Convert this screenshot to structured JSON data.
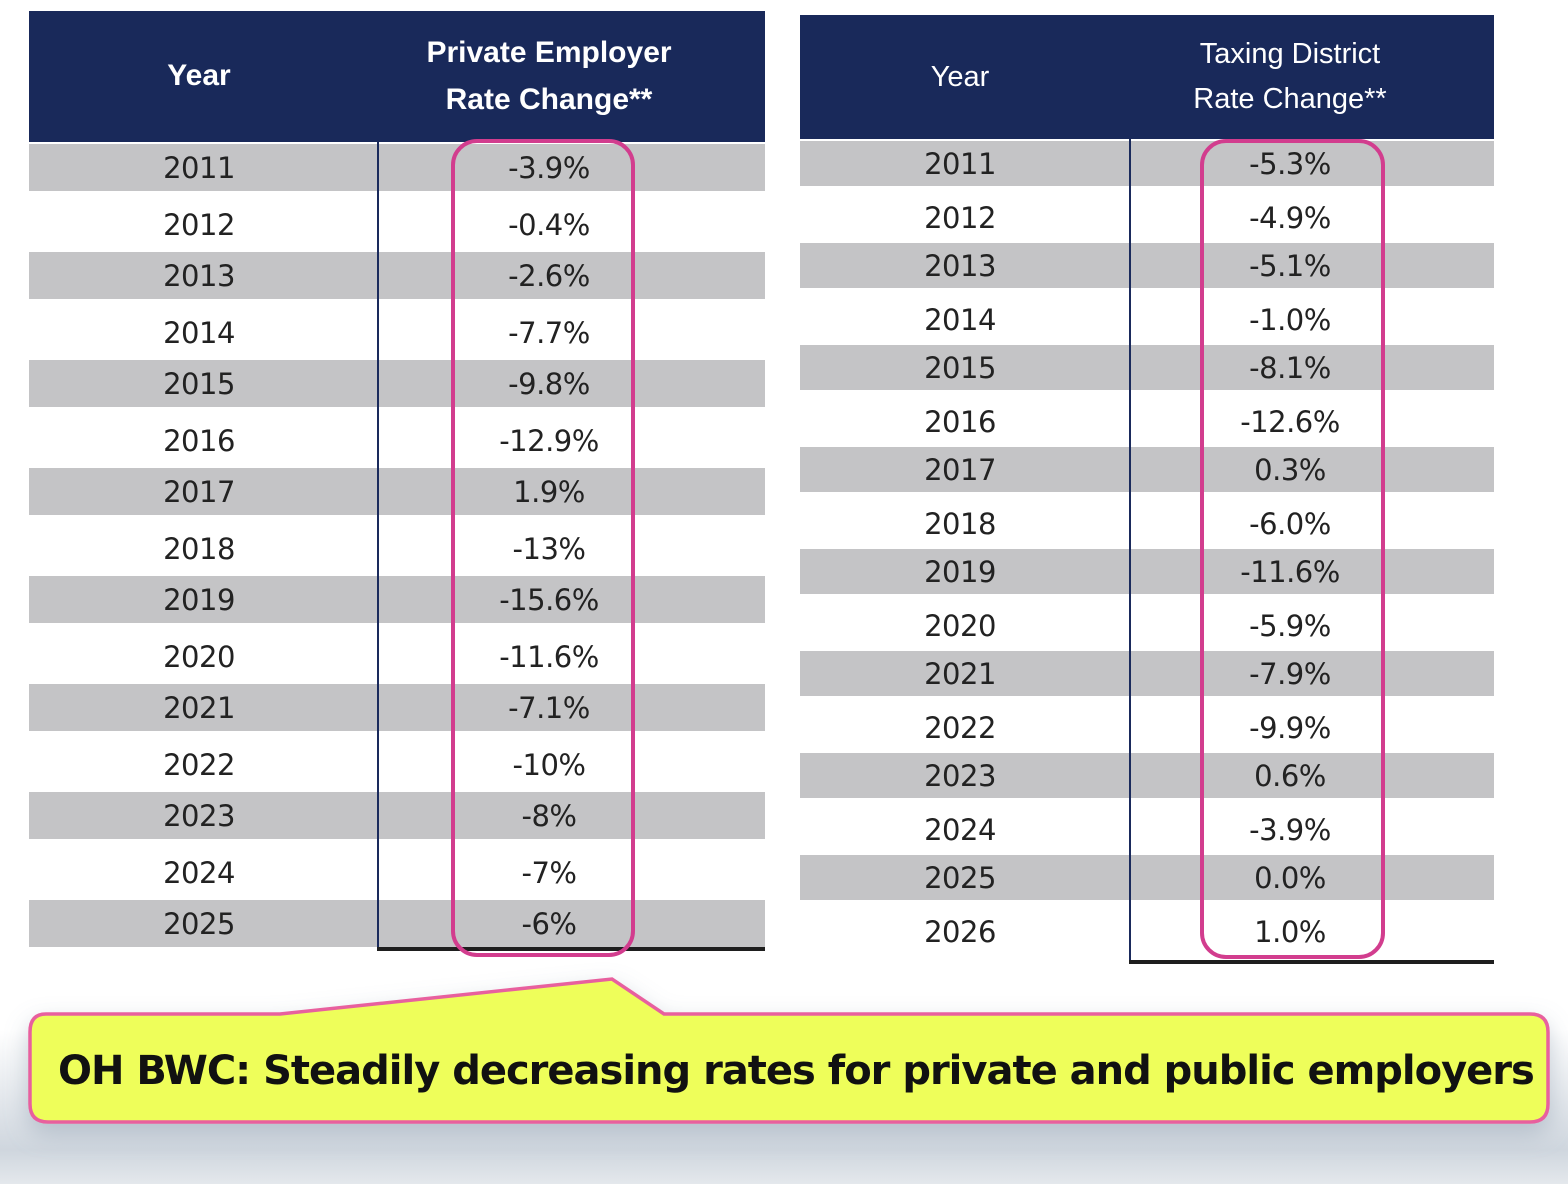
{
  "private_table": {
    "header_year": "Year",
    "header_rate_line1": "Private Employer",
    "header_rate_line2": "Rate Change**",
    "rows": [
      {
        "year": "2011",
        "rate": "-3.9%"
      },
      {
        "year": "2012",
        "rate": "-0.4%"
      },
      {
        "year": "2013",
        "rate": "-2.6%"
      },
      {
        "year": "2014",
        "rate": "-7.7%"
      },
      {
        "year": "2015",
        "rate": "-9.8%"
      },
      {
        "year": "2016",
        "rate": "-12.9%"
      },
      {
        "year": "2017",
        "rate": "1.9%"
      },
      {
        "year": "2018",
        "rate": "-13%"
      },
      {
        "year": "2019",
        "rate": "-15.6%"
      },
      {
        "year": "2020",
        "rate": "-11.6%"
      },
      {
        "year": "2021",
        "rate": "-7.1%"
      },
      {
        "year": "2022",
        "rate": "-10%"
      },
      {
        "year": "2023",
        "rate": "-8%"
      },
      {
        "year": "2024",
        "rate": "-7%"
      },
      {
        "year": "2025",
        "rate": "-6%"
      }
    ]
  },
  "taxing_table": {
    "header_year": "Year",
    "header_rate_line1": "Taxing District",
    "header_rate_line2": "Rate Change**",
    "rows": [
      {
        "year": "2011",
        "rate": "-5.3%"
      },
      {
        "year": "2012",
        "rate": "-4.9%"
      },
      {
        "year": "2013",
        "rate": "-5.1%"
      },
      {
        "year": "2014",
        "rate": "-1.0%"
      },
      {
        "year": "2015",
        "rate": "-8.1%"
      },
      {
        "year": "2016",
        "rate": "-12.6%"
      },
      {
        "year": "2017",
        "rate": "0.3%"
      },
      {
        "year": "2018",
        "rate": "-6.0%"
      },
      {
        "year": "2019",
        "rate": "-11.6%"
      },
      {
        "year": "2020",
        "rate": "-5.9%"
      },
      {
        "year": "2021",
        "rate": "-7.9%"
      },
      {
        "year": "2022",
        "rate": "-9.9%"
      },
      {
        "year": "2023",
        "rate": "0.6%"
      },
      {
        "year": "2024",
        "rate": "-3.9%"
      },
      {
        "year": "2025",
        "rate": "0.0%"
      },
      {
        "year": "2026",
        "rate": "1.0%"
      }
    ]
  },
  "callout": {
    "text": "OH BWC: Steadily decreasing rates for private and public employers"
  },
  "colors": {
    "header_bg": "#19295a",
    "row_shade": "#c4c4c6",
    "highlight_border": "#d23d8e",
    "callout_bg": "#eefe5a",
    "callout_border": "#e8609e"
  }
}
